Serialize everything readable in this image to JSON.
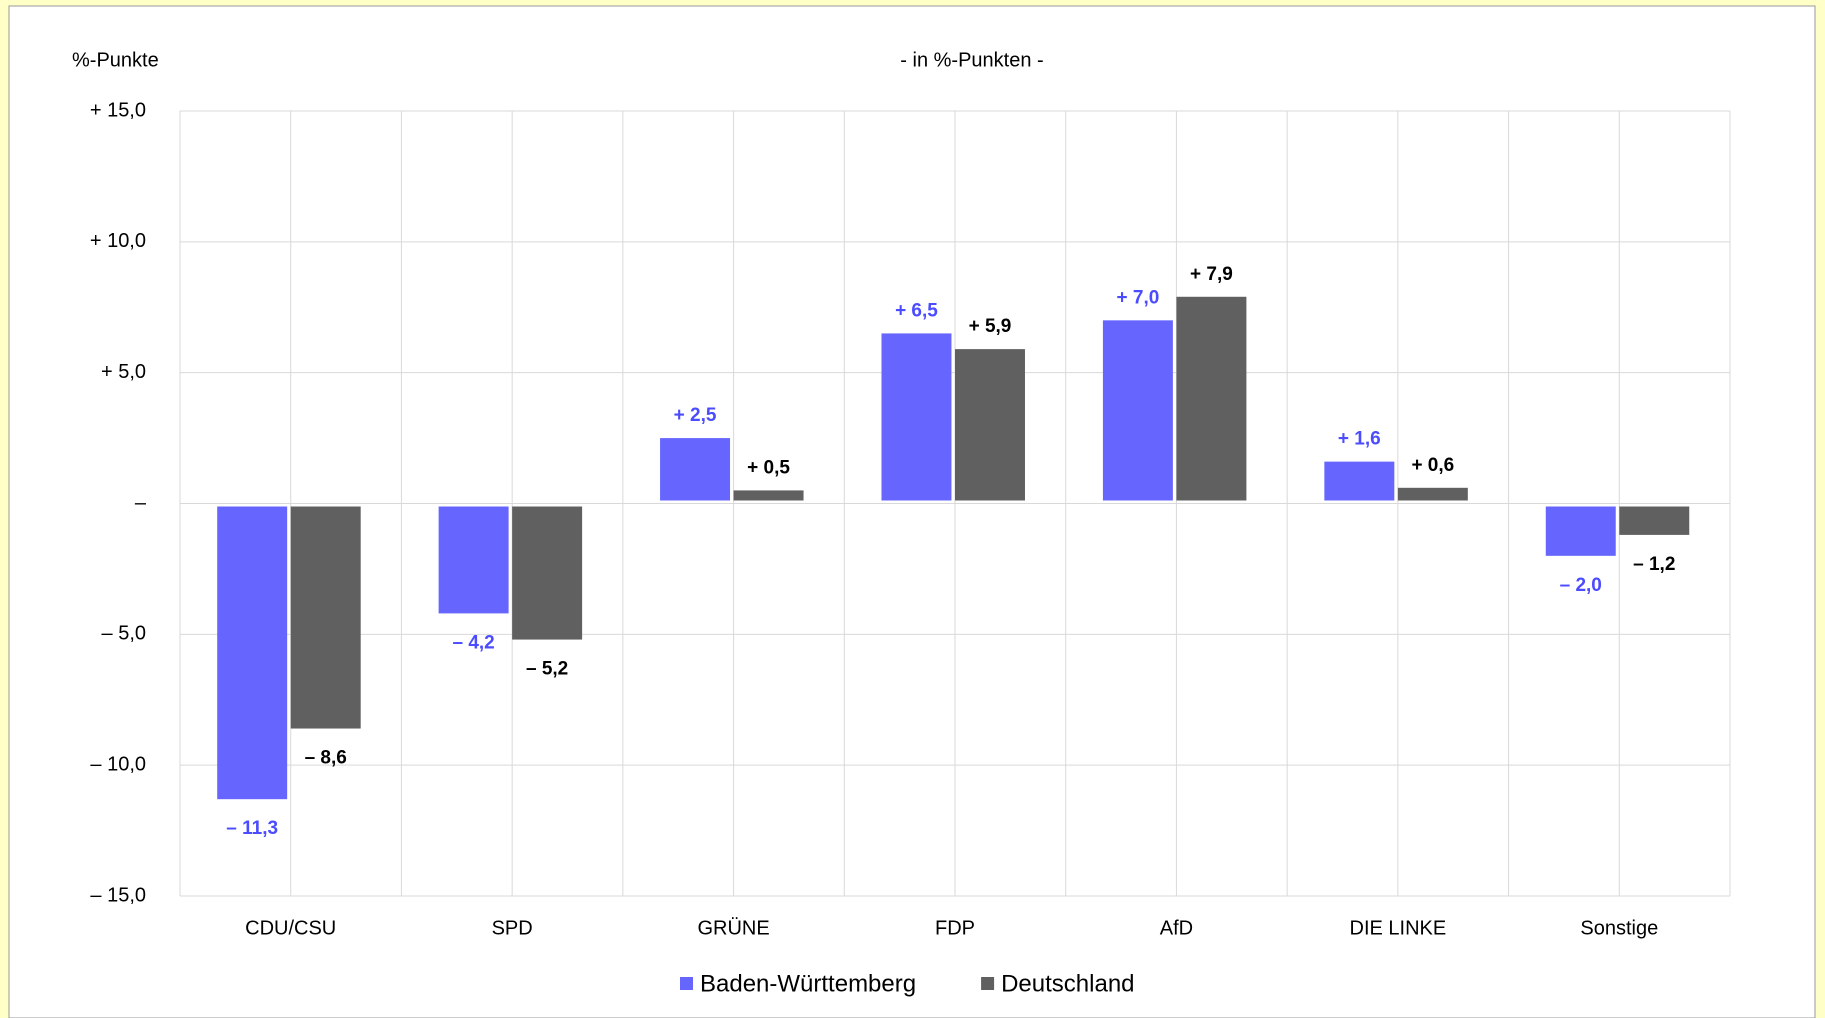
{
  "chart_data": {
    "type": "bar",
    "title": "- in %-Punkten -",
    "y_label": "%-Punkte",
    "categories": [
      "CDU/CSU",
      "SPD",
      "GRÜNE",
      "FDP",
      "AfD",
      "DIE LINKE",
      "Sonstige"
    ],
    "series": [
      {
        "name": "Baden-Württemberg",
        "color": "#6666ff",
        "values": [
          -11.3,
          -4.2,
          2.5,
          6.5,
          7.0,
          1.6,
          -2.0
        ],
        "value_labels": [
          "– 11,3",
          "– 4,2",
          "+ 2,5",
          "+ 6,5",
          "+ 7,0",
          "+ 1,6",
          "– 2,0"
        ]
      },
      {
        "name": "Deutschland",
        "color": "#606060",
        "values": [
          -8.6,
          -5.2,
          0.5,
          5.9,
          7.9,
          0.6,
          -1.2
        ],
        "value_labels": [
          "– 8,6",
          "– 5,2",
          "+ 0,5",
          "+ 5,9",
          "+ 7,9",
          "+ 0,6",
          "– 1,2"
        ]
      }
    ],
    "ylim": [
      -15,
      15
    ],
    "yticks": [
      {
        "value": 15,
        "label": "+ 15,0"
      },
      {
        "value": 10,
        "label": "+ 10,0"
      },
      {
        "value": 5,
        "label": "+ 5,0"
      },
      {
        "value": 0,
        "label": "–"
      },
      {
        "value": -5,
        "label": "– 5,0"
      },
      {
        "value": -10,
        "label": "– 10,0"
      },
      {
        "value": -15,
        "label": "– 15,0"
      }
    ],
    "grid": true,
    "legend": "bottom"
  }
}
